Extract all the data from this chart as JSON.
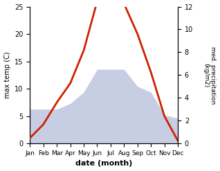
{
  "months": [
    "Jan",
    "Feb",
    "Mar",
    "Apr",
    "May",
    "Jun",
    "Jul",
    "Aug",
    "Sep",
    "Oct",
    "Nov",
    "Dec"
  ],
  "temperature": [
    1.0,
    3.5,
    7.5,
    11.0,
    17.0,
    26.0,
    26.5,
    25.5,
    20.0,
    13.0,
    5.0,
    0.5
  ],
  "precipitation": [
    3.0,
    3.0,
    3.0,
    3.5,
    4.5,
    6.5,
    6.5,
    6.5,
    5.0,
    4.5,
    2.5,
    2.2
  ],
  "temp_color": "#cc2200",
  "precip_fill_color": "#b0b8d8",
  "precip_edge_color": "#8890b8",
  "xlabel": "date (month)",
  "ylabel_left": "max temp (C)",
  "ylabel_right": "med. precipitation\n(kg/m2)",
  "ylim_left": [
    0,
    25
  ],
  "ylim_right": [
    0,
    12
  ],
  "background_color": "#ffffff",
  "temp_linewidth": 2.0
}
